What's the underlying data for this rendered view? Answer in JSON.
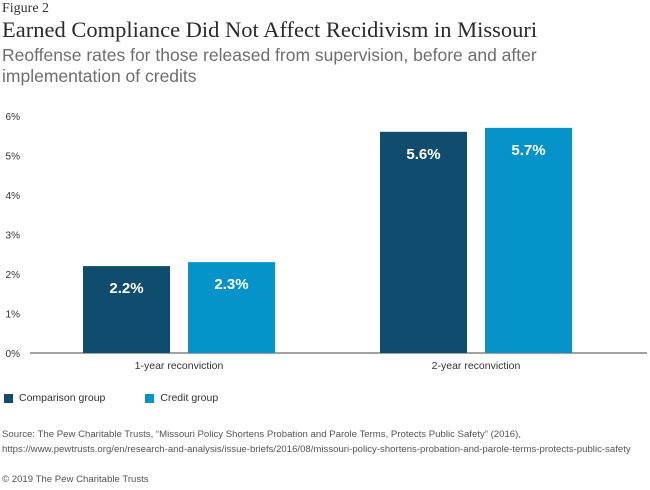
{
  "figure_label": "Figure 2",
  "chart_data": {
    "type": "bar",
    "title": "Earned Compliance Did Not Affect Recidivism in Missouri",
    "subtitle": "Reoffense rates for those released from supervision, before and after implementation of credits",
    "categories": [
      "1-year reconviction",
      "2-year reconviction"
    ],
    "series": [
      {
        "name": "Comparison group",
        "color": "#0f4c6e",
        "values": [
          2.2,
          5.6
        ],
        "labels": [
          "2.2%",
          "5.6%"
        ]
      },
      {
        "name": "Credit group",
        "color": "#0693c9",
        "values": [
          2.3,
          5.7
        ],
        "labels": [
          "2.3%",
          "5.7%"
        ]
      }
    ],
    "ylim": [
      0,
      6
    ],
    "yticks": [
      "0%",
      "1%",
      "2%",
      "3%",
      "4%",
      "5%",
      "6%"
    ],
    "ytick_values": [
      0,
      1,
      2,
      3,
      4,
      5,
      6
    ],
    "xlabel": "",
    "ylabel": "",
    "grid": false,
    "legend_position": "bottom-left"
  },
  "source": "Source: The Pew Charitable Trusts, “Missouri Policy Shortens Probation and Parole Terms, Protects Public Safety” (2016), https://www.pewtrusts.org/en/research-and-analysis/issue-briefs/2016/08/missouri-policy-shortens-probation-and-parole-terms-protects-public-safety",
  "copyright": "© 2019 The Pew Charitable Trusts"
}
